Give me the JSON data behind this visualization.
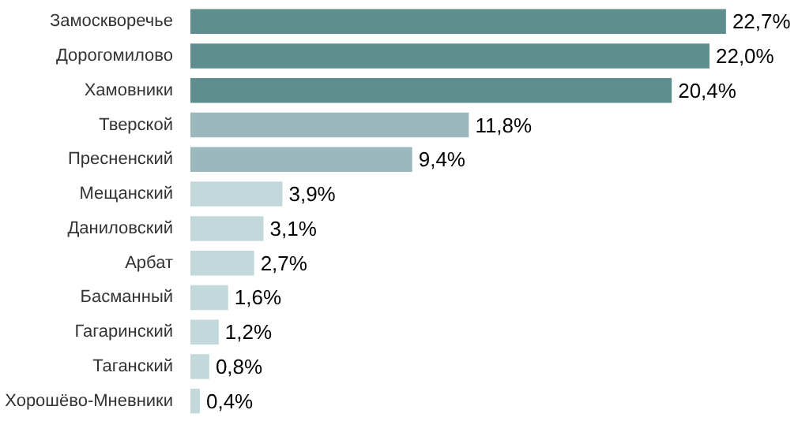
{
  "chart_data": {
    "type": "bar",
    "orientation": "horizontal",
    "categories": [
      "Замоскворечье",
      "Дорогомилово",
      "Хамовники",
      "Тверской",
      "Пресненский",
      "Мещанский",
      "Даниловский",
      "Арбат",
      "Басманный",
      "Гагаринский",
      "Таганский",
      "Хорошёво-Мневники"
    ],
    "values": [
      22.7,
      22.0,
      20.4,
      11.8,
      9.4,
      3.9,
      3.1,
      2.7,
      1.6,
      1.2,
      0.8,
      0.4
    ],
    "value_labels": [
      "22,7%",
      "22,0%",
      "20,4%",
      "11,8%",
      "9,4%",
      "3,9%",
      "3,1%",
      "2,7%",
      "1,6%",
      "1,2%",
      "0,8%",
      "0,4%"
    ],
    "colors": [
      "#5f8e8e",
      "#5f8e8e",
      "#5f8e8e",
      "#9bb9bc",
      "#9bb9bc",
      "#c3d8db",
      "#c3d8db",
      "#c3d8db",
      "#c3d8db",
      "#c3d8db",
      "#c3d8db",
      "#c3d8db"
    ],
    "grid": false
  }
}
